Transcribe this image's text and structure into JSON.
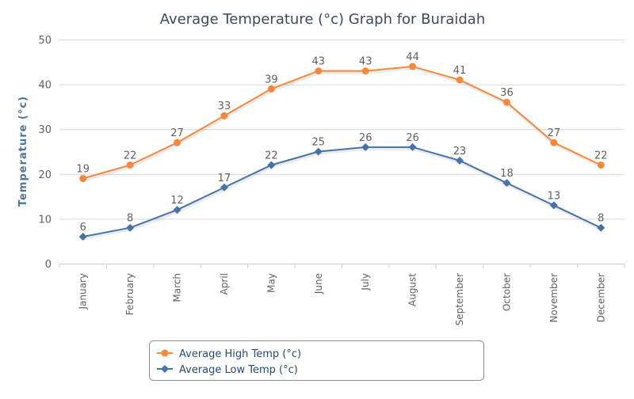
{
  "chart_data": {
    "type": "line",
    "title": "Average Temperature (°c) Graph for Buraidah",
    "xlabel": "",
    "ylabel": "Temperature (°c)",
    "ylim": [
      0,
      50
    ],
    "yticks": [
      0,
      10,
      20,
      30,
      40,
      50
    ],
    "grid": true,
    "legend": "bottom-center",
    "categories": [
      "January",
      "February",
      "March",
      "April",
      "May",
      "June",
      "July",
      "August",
      "September",
      "October",
      "November",
      "December"
    ],
    "series": [
      {
        "name": "Average High Temp (°c)",
        "color": "#F7883A",
        "marker": "circle",
        "values": [
          19,
          22,
          27,
          33,
          39,
          43,
          43,
          44,
          41,
          36,
          27,
          22
        ]
      },
      {
        "name": "Average Low Temp (°c)",
        "color": "#4572A7",
        "marker": "diamond",
        "values": [
          6,
          8,
          12,
          17,
          22,
          25,
          26,
          26,
          23,
          18,
          13,
          8
        ]
      }
    ]
  }
}
